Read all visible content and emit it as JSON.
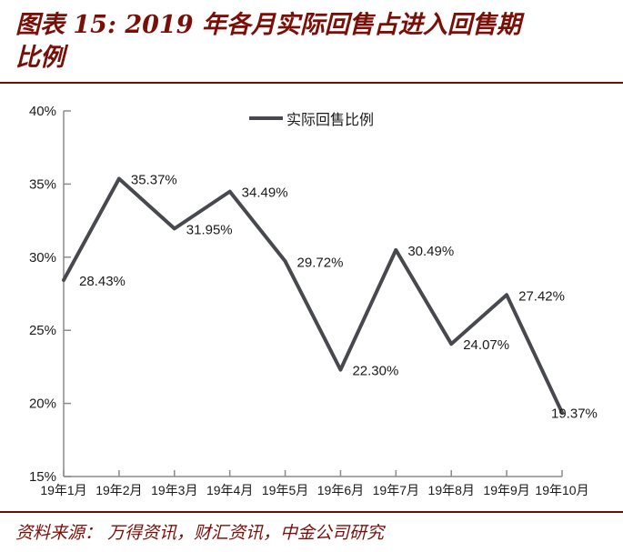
{
  "title": "图表 15: 2019 年各月实际回售占进入回售期比例",
  "source_note": "资料来源： 万得资讯，财汇资讯，中金公司研究",
  "colors": {
    "accent_maroon": "#7a0f08",
    "series_line": "#47494e",
    "axis_gray": "#8c8c8c",
    "label_text": "#1a1a1a"
  },
  "chart_data": {
    "type": "line",
    "title": "",
    "legend_entries": [
      "实际回售比例"
    ],
    "legend_position": "top-center",
    "categories": [
      "19年1月",
      "19年2月",
      "19年3月",
      "19年4月",
      "19年5月",
      "19年6月",
      "19年7月",
      "19年8月",
      "19年9月",
      "19年10月"
    ],
    "series": [
      {
        "name": "实际回售比例",
        "values": [
          28.43,
          35.37,
          31.95,
          34.49,
          29.72,
          22.3,
          30.49,
          24.07,
          27.42,
          19.37
        ]
      }
    ],
    "data_labels": [
      "28.43%",
      "35.37%",
      "31.95%",
      "34.49%",
      "29.72%",
      "22.30%",
      "30.49%",
      "24.07%",
      "27.42%",
      "19.37%"
    ],
    "ylim": [
      15,
      40
    ],
    "ytick_step": 5,
    "ytick_labels": [
      "15%",
      "20%",
      "25%",
      "30%",
      "35%",
      "40%"
    ],
    "grid": false,
    "x_axis_mode": "on-tick-marks"
  }
}
